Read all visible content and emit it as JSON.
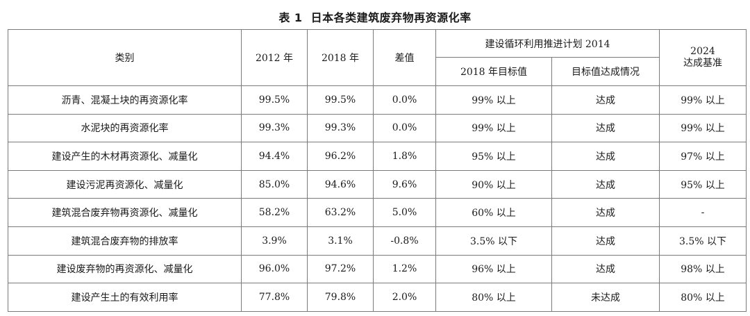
{
  "title": {
    "label": "表",
    "number": "1",
    "text": "日本各类建筑废弃物再资源化率"
  },
  "headers": {
    "category": "类别",
    "y2012": "2012 年",
    "y2018": "2018 年",
    "diff": "差值",
    "plan": "建设循环利用推进计划 2014",
    "target2018": "2018 年目标值",
    "status": "目标值达成情况",
    "std2024_line1": "2024",
    "std2024_line2": "达成基准"
  },
  "rows": [
    {
      "category": "沥青、混凝土块的再资源化率",
      "y2012": "99.5%",
      "y2018": "99.5%",
      "diff": "0.0%",
      "target2018": "99% 以上",
      "status": "达成",
      "std2024": "99% 以上"
    },
    {
      "category": "水泥块的再资源化率",
      "y2012": "99.3%",
      "y2018": "99.3%",
      "diff": "0.0%",
      "target2018": "99% 以上",
      "status": "达成",
      "std2024": "99% 以上"
    },
    {
      "category": "建设产生的木材再资源化、减量化",
      "y2012": "94.4%",
      "y2018": "96.2%",
      "diff": "1.8%",
      "target2018": "95% 以上",
      "status": "达成",
      "std2024": "97% 以上"
    },
    {
      "category": "建设污泥再资源化、减量化",
      "y2012": "85.0%",
      "y2018": "94.6%",
      "diff": "9.6%",
      "target2018": "90% 以上",
      "status": "达成",
      "std2024": "95% 以上"
    },
    {
      "category": "建筑混合废弃物再资源化、减量化",
      "y2012": "58.2%",
      "y2018": "63.2%",
      "diff": "5.0%",
      "target2018": "60% 以上",
      "status": "达成",
      "std2024": "-"
    },
    {
      "category": "建筑混合废弃物的排放率",
      "y2012": "3.9%",
      "y2018": "3.1%",
      "diff": "-0.8%",
      "target2018": "3.5% 以下",
      "status": "达成",
      "std2024": "3.5% 以下"
    },
    {
      "category": "建设废弃物的再资源化、减量化",
      "y2012": "96.0%",
      "y2018": "97.2%",
      "diff": "1.2%",
      "target2018": "96% 以上",
      "status": "达成",
      "std2024": "98% 以上"
    },
    {
      "category": "建设产生土的有效利用率",
      "y2012": "77.8%",
      "y2018": "79.8%",
      "diff": "2.0%",
      "target2018": "80% 以上",
      "status": "未达成",
      "std2024": "80% 以上"
    }
  ]
}
